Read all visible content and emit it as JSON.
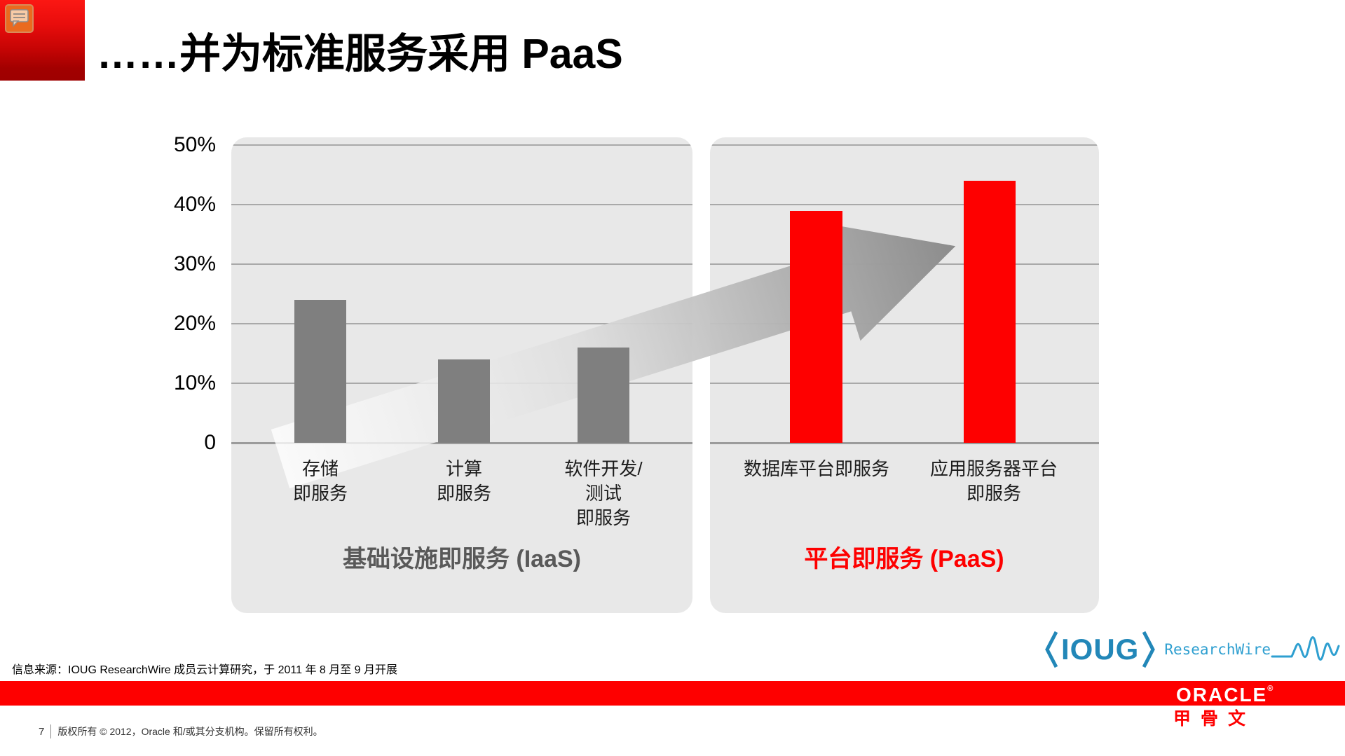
{
  "header": {
    "title": "……并为标准服务采用 PaaS"
  },
  "chart_data": {
    "type": "bar",
    "title": "……并为标准服务采用 PaaS",
    "xlabel": "",
    "ylabel": "",
    "ylim": [
      0,
      50
    ],
    "yticks": [
      "50%",
      "40%",
      "30%",
      "20%",
      "10%",
      "0"
    ],
    "grid": true,
    "unit": "percent",
    "legend_position": "none",
    "groups": [
      {
        "label": "基础设施即服务 (IaaS)",
        "label_color": "#595959",
        "bar_color": "#7f7f7f",
        "bars": [
          {
            "category": "存储\n即服务",
            "value": 24
          },
          {
            "category": "计算\n即服务",
            "value": 14
          },
          {
            "category": "软件开发/\n测试\n即服务",
            "value": 16
          }
        ]
      },
      {
        "label": "平台即服务 (PaaS)",
        "label_color": "#fe0000",
        "bar_color": "#fe0000",
        "bars": [
          {
            "category": "数据库平台即服务",
            "value": 39
          },
          {
            "category": "应用服务器平台\n即服务",
            "value": 44
          }
        ]
      }
    ],
    "annotation": {
      "shape": "block-arrow",
      "direction": "up-right",
      "meaning": "growth from IaaS to PaaS adoption"
    }
  },
  "footer": {
    "source_note": "信息来源：IOUG ResearchWire 成员云计算研究，于 2011 年 8 月至 9 月开展",
    "page_number": "7",
    "copyright": "版权所有 © 2012，Oracle 和/或其分支机构。保留所有权利。"
  },
  "logos": {
    "ioug": {
      "name": "IOUG",
      "suffix": "ResearchWire"
    },
    "oracle": {
      "wordmark": "ORACLE",
      "registered": "®",
      "chinese": "甲骨文"
    }
  },
  "icons": {
    "comment": "comment-annotation"
  },
  "colors": {
    "accent_red": "#fe0000",
    "bar_gray": "#7f7f7f",
    "panel_gray": "#e8e8e8",
    "gridline_gray": "#a9a9a9",
    "caption_gray": "#595959",
    "ioug_blue": "#2287b8",
    "corner_red_top": "#fb1713",
    "corner_red_bottom": "#9e0000",
    "comment_icon_orange": "#ea6a1f"
  }
}
